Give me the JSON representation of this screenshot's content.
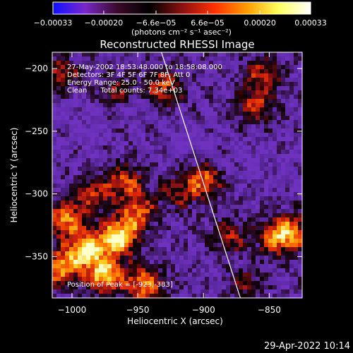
{
  "chart_data": {
    "type": "heatmap",
    "title": "Reconstructed RHESSI Image",
    "xlabel": "Heliocentric X (arcsec)",
    "ylabel": "Heliocentric Y (arcsec)",
    "xlim": [
      -1015,
      -825
    ],
    "ylim": [
      -383,
      -187
    ],
    "x_ticks": [
      -1000,
      -950,
      -900,
      -850
    ],
    "x_tick_labels": [
      "−1000",
      "−950",
      "−900",
      "−850"
    ],
    "y_ticks": [
      -200,
      -250,
      -300,
      -350
    ],
    "y_tick_labels": [
      "−200",
      "−250",
      "−300",
      "−350"
    ],
    "colorbar": {
      "range": [
        -0.00033,
        0.00033
      ],
      "ticks": [
        -0.00033,
        -0.0002,
        -6.6e-05,
        6.6e-05,
        0.0002,
        0.00033
      ],
      "tick_labels": [
        "−0.00033",
        "−0.00020",
        "−6.6e−05",
        "6.6e−05",
        "0.00020",
        "0.00033"
      ],
      "unit_label": "(photons cm⁻² s⁻¹ asec⁻²)",
      "colors": [
        "#1010ff",
        "#7a28c8",
        "#3a0a2a",
        "#000000",
        "#8a1010",
        "#ff3000",
        "#ff9a00",
        "#ffff60",
        "#ffffff"
      ]
    },
    "limb_line": {
      "points": [
        [
          -932,
          -187
        ],
        [
          -872,
          -383
        ]
      ],
      "color": "#ffffff"
    },
    "info_lines": [
      "27-May-2002 18:53:48.000 to 18:58:08.000",
      "Detectors: 3F 4F 5F 6F 7F 8F, Att 0",
      "Energy Range: 25.0 - 50.0 keV",
      "Clean      Total counts: 7.34e+03"
    ],
    "peak_text": "Position of Peak = [-923,-383]",
    "bright_regions": [
      {
        "x": -990,
        "y": -345,
        "intensity": 0.9
      },
      {
        "x": -965,
        "y": -335,
        "intensity": 1.0
      },
      {
        "x": -975,
        "y": -365,
        "intensity": 0.85
      },
      {
        "x": -1005,
        "y": -320,
        "intensity": 0.7
      },
      {
        "x": -950,
        "y": -315,
        "intensity": 0.65
      },
      {
        "x": -960,
        "y": -290,
        "intensity": 0.55
      },
      {
        "x": -985,
        "y": -300,
        "intensity": 0.5
      },
      {
        "x": -1010,
        "y": -360,
        "intensity": 0.75
      },
      {
        "x": -945,
        "y": -372,
        "intensity": 0.7
      },
      {
        "x": -900,
        "y": -290,
        "intensity": 0.6
      },
      {
        "x": -880,
        "y": -335,
        "intensity": 0.45
      },
      {
        "x": -845,
        "y": -335,
        "intensity": 0.6
      },
      {
        "x": -832,
        "y": -330,
        "intensity": 0.55
      },
      {
        "x": -930,
        "y": -215,
        "intensity": 0.55
      },
      {
        "x": -965,
        "y": -218,
        "intensity": 0.4
      },
      {
        "x": -860,
        "y": -230,
        "intensity": 0.5
      },
      {
        "x": -855,
        "y": -205,
        "intensity": 0.45
      },
      {
        "x": -1008,
        "y": -205,
        "intensity": 0.45
      },
      {
        "x": -920,
        "y": -300,
        "intensity": 0.35
      },
      {
        "x": -870,
        "y": -370,
        "intensity": 0.35
      }
    ],
    "dark_regions": [
      {
        "x": -955,
        "y": -230,
        "intensity": 0.8
      },
      {
        "x": -990,
        "y": -255,
        "intensity": 0.7
      },
      {
        "x": -910,
        "y": -260,
        "intensity": 0.8
      },
      {
        "x": -865,
        "y": -270,
        "intensity": 0.7
      },
      {
        "x": -1000,
        "y": -225,
        "intensity": 0.6
      },
      {
        "x": -880,
        "y": -350,
        "intensity": 0.6
      },
      {
        "x": -835,
        "y": -280,
        "intensity": 0.55
      },
      {
        "x": -935,
        "y": -320,
        "intensity": 0.45
      }
    ]
  },
  "footer_timestamp": "29-Apr-2022 10:14"
}
